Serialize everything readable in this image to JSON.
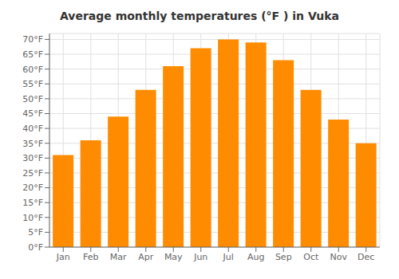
{
  "chart_data": {
    "type": "bar",
    "title": "Average monthly temperatures (°F ) in Vuka",
    "categories": [
      "Jan",
      "Feb",
      "Mar",
      "Apr",
      "May",
      "Jun",
      "Jul",
      "Aug",
      "Sep",
      "Oct",
      "Nov",
      "Dec"
    ],
    "values": [
      31,
      36,
      44,
      53,
      61,
      67,
      70,
      69,
      63,
      53,
      43,
      35
    ],
    "color": "#FF8C00",
    "ylim": [
      0,
      72
    ],
    "yticks": [
      {
        "value": 0,
        "label": "0°F"
      },
      {
        "value": 5,
        "label": "5°F"
      },
      {
        "value": 10,
        "label": "10°F"
      },
      {
        "value": 15,
        "label": "15°F"
      },
      {
        "value": 20,
        "label": "20°F"
      },
      {
        "value": 25,
        "label": "25°F"
      },
      {
        "value": 30,
        "label": "30°F"
      },
      {
        "value": 35,
        "label": "35°F"
      },
      {
        "value": 40,
        "label": "40°F"
      },
      {
        "value": 45,
        "label": "45°F"
      },
      {
        "value": 50,
        "label": "50°F"
      },
      {
        "value": 55,
        "label": "55°F"
      },
      {
        "value": 60,
        "label": "60°F"
      },
      {
        "value": 65,
        "label": "65°F"
      },
      {
        "value": 70,
        "label": "70°F"
      }
    ],
    "grid": true,
    "tick_labels": true
  }
}
